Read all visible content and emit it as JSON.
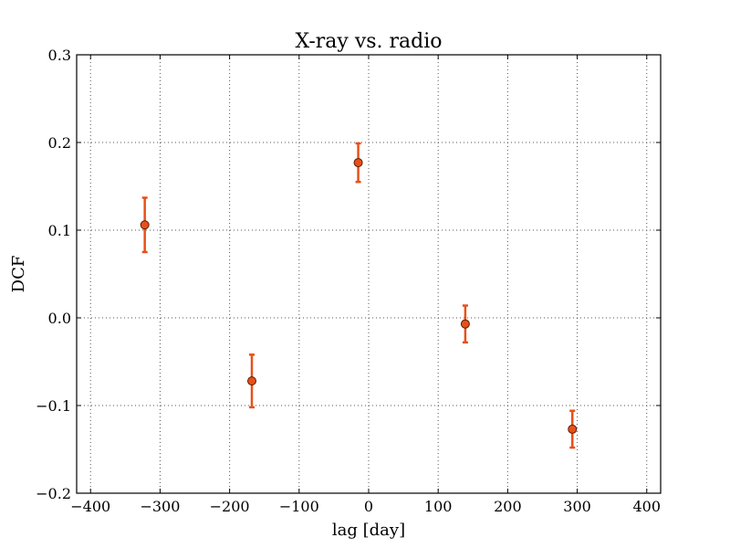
{
  "chart_data": {
    "type": "scatter",
    "title": "X-ray vs. radio",
    "xlabel": "lag [day]",
    "ylabel": "DCF",
    "xlim": [
      -420,
      420
    ],
    "ylim": [
      -0.2,
      0.3
    ],
    "xticks": [
      -400,
      -300,
      -200,
      -100,
      0,
      100,
      200,
      300,
      400
    ],
    "xtick_labels": [
      "−400",
      "−300",
      "−200",
      "−100",
      "0",
      "100",
      "200",
      "300",
      "400"
    ],
    "yticks": [
      -0.2,
      -0.1,
      0.0,
      0.1,
      0.2,
      0.3
    ],
    "ytick_labels": [
      "−0.2",
      "−0.1",
      "0.0",
      "0.1",
      "0.2",
      "0.3"
    ],
    "grid": true,
    "series": [
      {
        "color": "#e8501a",
        "marker_fill": "#e8501a",
        "marker_edge": "#5a1a00",
        "points": [
          {
            "x": -322,
            "y": 0.106,
            "yerr_low": 0.075,
            "yerr_high": 0.137
          },
          {
            "x": -168,
            "y": -0.072,
            "yerr_low": -0.102,
            "yerr_high": -0.042
          },
          {
            "x": -15,
            "y": 0.177,
            "yerr_low": 0.155,
            "yerr_high": 0.199
          },
          {
            "x": 139,
            "y": -0.007,
            "yerr_low": -0.028,
            "yerr_high": 0.014
          },
          {
            "x": 293,
            "y": -0.127,
            "yerr_low": -0.148,
            "yerr_high": -0.106
          }
        ]
      }
    ]
  }
}
